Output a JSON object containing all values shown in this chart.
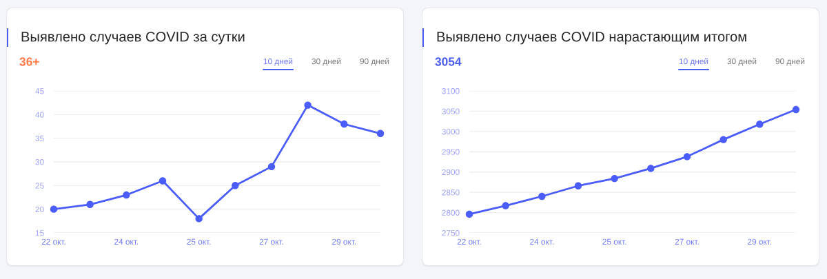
{
  "chart_data": [
    {
      "type": "line",
      "title": "Выявлено случаев COVID за сутки",
      "subtitle": "36+",
      "annotations": [
        "10 дней",
        "30 дней",
        "90 дней"
      ],
      "categories": [
        "22 окт.",
        null,
        "24 окт.",
        null,
        "25 окт.",
        null,
        "27 окт.",
        null,
        "29 окт.",
        null
      ],
      "ylim": [
        15,
        45
      ],
      "yticks": [
        15,
        20,
        25,
        30,
        35,
        40,
        45
      ],
      "grid": "y",
      "marker": "circle",
      "line_style": "solid",
      "series": [
        {
          "color": "#4a5cfa",
          "values": [
            20,
            21,
            23,
            26,
            18,
            25,
            29,
            42,
            38,
            36
          ]
        }
      ]
    },
    {
      "type": "line",
      "title": "Выявлено случаев COVID нарастающим итогом",
      "subtitle": "3054",
      "annotations": [
        "10 дней",
        "30 дней",
        "90 дней"
      ],
      "categories": [
        "22 окт.",
        null,
        "24 окт.",
        null,
        "25 окт.",
        null,
        "27 окт.",
        null,
        "29 окт.",
        null
      ],
      "ylim": [
        2750,
        3100
      ],
      "yticks": [
        2750,
        2800,
        2850,
        2900,
        2950,
        3000,
        3050,
        3100
      ],
      "grid": "y",
      "marker": "circle",
      "line_style": "solid",
      "series": [
        {
          "color": "#4a5cfa",
          "values": [
            2796,
            2817,
            2840,
            2866,
            2884,
            2909,
            2938,
            2980,
            3018,
            3054
          ]
        }
      ]
    }
  ]
}
